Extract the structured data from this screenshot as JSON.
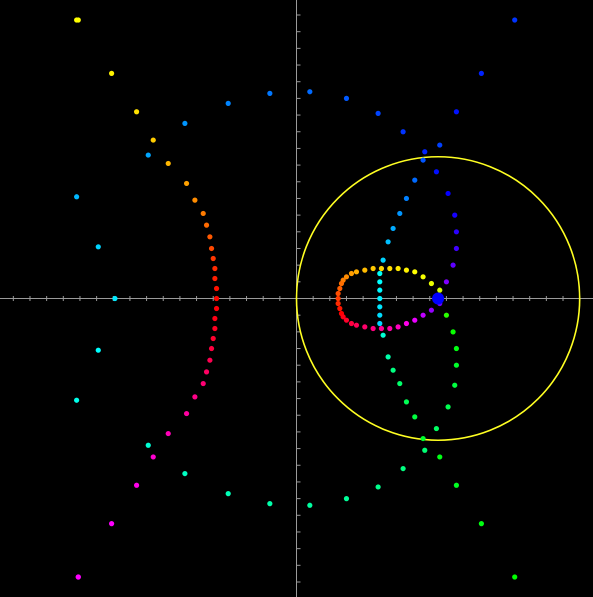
{
  "view": {
    "background": "#000000",
    "axis_color": "#9a9a9a",
    "x_range": [
      -17.8,
      17.8
    ],
    "y_range": [
      -17.9,
      17.9
    ],
    "tick_step": 1
  },
  "circle": {
    "center": [
      8.5,
      0
    ],
    "radius": 8.5,
    "stroke": "#ffff22"
  },
  "focus_point": {
    "x": 8.5,
    "y": 0,
    "color": "#0000ff"
  },
  "series": [
    {
      "name": "",
      "role": "outer-hyperbola",
      "points": [
        [
          -13.1,
          16.7
        ],
        [
          -11.1,
          13.5
        ],
        [
          -9.6,
          11.2
        ],
        [
          -8.6,
          9.5
        ],
        [
          -7.7,
          8.1
        ],
        [
          -6.6,
          6.9
        ],
        [
          -6.1,
          5.9
        ],
        [
          -5.6,
          5.1
        ],
        [
          -5.4,
          4.4
        ],
        [
          -5.2,
          3.7
        ],
        [
          -5.1,
          3.0
        ],
        [
          -5.0,
          2.4
        ],
        [
          -4.9,
          1.8
        ],
        [
          -4.9,
          1.2
        ],
        [
          -4.8,
          0.6
        ],
        [
          -4.8,
          0.0
        ],
        [
          -4.8,
          -0.6
        ],
        [
          -4.9,
          -1.2
        ],
        [
          -4.9,
          -1.8
        ],
        [
          -5.0,
          -2.4
        ],
        [
          -5.1,
          -3.0
        ],
        [
          -5.2,
          -3.7
        ],
        [
          -5.4,
          -4.4
        ],
        [
          -5.6,
          -5.1
        ],
        [
          -6.1,
          -5.9
        ],
        [
          -6.6,
          -6.9
        ],
        [
          -7.7,
          -8.1
        ],
        [
          -8.6,
          -9.5
        ],
        [
          -9.6,
          -11.2
        ],
        [
          -11.1,
          -13.5
        ],
        [
          -13.1,
          -16.7
        ]
      ],
      "hues": [
        60,
        57,
        53,
        48,
        43,
        38,
        33,
        29,
        25,
        21,
        17,
        13,
        10,
        7,
        4,
        2,
        358,
        355,
        352,
        349,
        345,
        341,
        337,
        333,
        328,
        322,
        317,
        311,
        305,
        300,
        296
      ]
    },
    {
      "name": "",
      "role": "outer-ellipse",
      "points": [
        [
          -10.9,
          0.0
        ],
        [
          -11.9,
          3.1
        ],
        [
          -13.2,
          6.1
        ],
        [
          -8.9,
          8.6
        ],
        [
          -6.7,
          10.5
        ],
        [
          -4.1,
          11.7
        ],
        [
          -1.6,
          12.3
        ],
        [
          0.8,
          12.4
        ],
        [
          3.0,
          12.0
        ],
        [
          4.9,
          11.1
        ],
        [
          6.4,
          10.0
        ],
        [
          7.7,
          8.8
        ],
        [
          8.4,
          7.6
        ],
        [
          9.1,
          6.3
        ],
        [
          9.5,
          5.0
        ],
        [
          9.6,
          4.0
        ],
        [
          9.6,
          3.0
        ],
        [
          9.4,
          2.0
        ],
        [
          9.0,
          1.0
        ],
        [
          8.5,
          0.0
        ],
        [
          9.0,
          -1.0
        ],
        [
          9.4,
          -2.0
        ],
        [
          9.6,
          -3.0
        ],
        [
          9.6,
          -4.0
        ],
        [
          9.5,
          -5.2
        ],
        [
          9.1,
          -6.5
        ],
        [
          8.4,
          -7.8
        ],
        [
          7.7,
          -9.1
        ],
        [
          6.4,
          -10.2
        ],
        [
          4.9,
          -11.3
        ],
        [
          3.0,
          -12.0
        ],
        [
          0.8,
          -12.4
        ],
        [
          -1.6,
          -12.3
        ],
        [
          -4.1,
          -11.7
        ],
        [
          -6.7,
          -10.5
        ],
        [
          -8.9,
          -8.8
        ],
        [
          -13.2,
          -6.1
        ],
        [
          -11.9,
          -3.1
        ]
      ],
      "hues": [
        185,
        190,
        197,
        201,
        205,
        209,
        212,
        215,
        219,
        224,
        228,
        232,
        237,
        241,
        245,
        250,
        255,
        262,
        270,
        280,
        110,
        118,
        124,
        130,
        135,
        139,
        143,
        147,
        150,
        153,
        156,
        158,
        160,
        163,
        166,
        170,
        175,
        180
      ]
    },
    {
      "name": "",
      "role": "corner-arms",
      "points": [
        [
          -13.2,
          16.7
        ],
        [
          13.1,
          16.7
        ],
        [
          11.1,
          13.5
        ],
        [
          9.6,
          11.2
        ],
        [
          -13.1,
          -16.7
        ],
        [
          13.1,
          -16.7
        ],
        [
          11.1,
          -13.5
        ],
        [
          9.6,
          -11.2
        ]
      ],
      "hues": [
        60,
        228,
        232,
        236,
        300,
        120,
        124,
        128
      ]
    },
    {
      "name": "",
      "role": "inner-limacon",
      "points": [
        [
          8.6,
          0.5
        ],
        [
          8.1,
          0.9
        ],
        [
          7.6,
          1.3
        ],
        [
          7.1,
          1.6
        ],
        [
          6.6,
          1.7
        ],
        [
          6.1,
          1.8
        ],
        [
          5.6,
          1.8
        ],
        [
          5.1,
          1.8
        ],
        [
          4.6,
          1.8
        ],
        [
          4.1,
          1.7
        ],
        [
          3.6,
          1.6
        ],
        [
          3.3,
          1.5
        ],
        [
          3.0,
          1.3
        ],
        [
          2.8,
          1.1
        ],
        [
          2.7,
          0.9
        ],
        [
          2.6,
          0.6
        ],
        [
          2.5,
          0.3
        ],
        [
          2.5,
          0.0
        ],
        [
          2.5,
          -0.3
        ],
        [
          2.6,
          -0.6
        ],
        [
          2.7,
          -0.9
        ],
        [
          2.8,
          -1.1
        ],
        [
          3.0,
          -1.3
        ],
        [
          3.3,
          -1.5
        ],
        [
          3.6,
          -1.6
        ],
        [
          4.1,
          -1.7
        ],
        [
          4.6,
          -1.8
        ],
        [
          5.1,
          -1.8
        ],
        [
          5.6,
          -1.8
        ],
        [
          6.1,
          -1.7
        ],
        [
          6.6,
          -1.5
        ],
        [
          7.1,
          -1.3
        ],
        [
          7.6,
          -1.0
        ],
        [
          8.1,
          -0.7
        ],
        [
          8.6,
          -0.3
        ]
      ],
      "hues": [
        70,
        65,
        62,
        60,
        57,
        55,
        52,
        50,
        47,
        44,
        41,
        37,
        33,
        30,
        26,
        22,
        18,
        14,
        10,
        5,
        0,
        355,
        350,
        345,
        340,
        335,
        330,
        325,
        320,
        315,
        305,
        295,
        285,
        275,
        265
      ]
    },
    {
      "name": "",
      "role": "inner-spine",
      "points": [
        [
          5.0,
          1.5
        ],
        [
          5.0,
          1.0
        ],
        [
          5.0,
          0.5
        ],
        [
          5.0,
          0.0
        ],
        [
          5.0,
          -0.5
        ],
        [
          5.0,
          -1.0
        ],
        [
          5.0,
          -1.5
        ],
        [
          5.2,
          -2.2
        ],
        [
          5.5,
          -3.5
        ],
        [
          5.8,
          -4.3
        ],
        [
          6.2,
          -5.1
        ],
        [
          6.6,
          -6.2
        ],
        [
          7.1,
          -7.1
        ],
        [
          7.6,
          -8.4
        ],
        [
          8.6,
          -9.5
        ],
        [
          5.2,
          2.3
        ],
        [
          5.5,
          3.4
        ],
        [
          5.8,
          4.2
        ],
        [
          6.2,
          5.1
        ],
        [
          6.6,
          6.0
        ],
        [
          7.1,
          7.1
        ],
        [
          7.6,
          8.3
        ],
        [
          8.6,
          9.2
        ]
      ],
      "hues": [
        178,
        180,
        182,
        184,
        186,
        188,
        190,
        170,
        160,
        150,
        145,
        140,
        135,
        130,
        125,
        190,
        195,
        200,
        205,
        210,
        215,
        220,
        225
      ]
    }
  ]
}
